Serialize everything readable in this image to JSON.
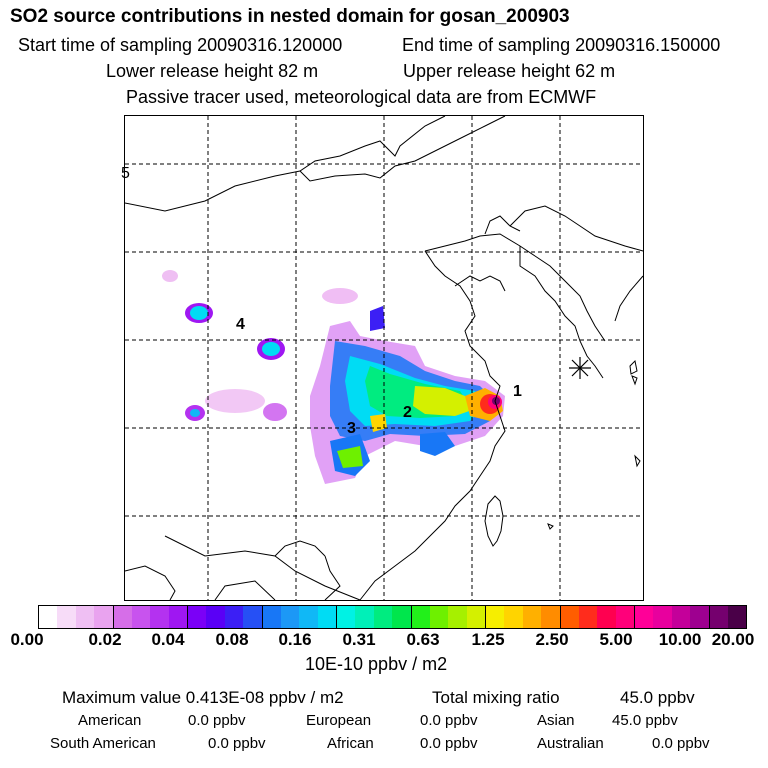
{
  "header": {
    "title": "SO2 source contributions in nested domain for gosan_200903",
    "start_time": "Start time of sampling 20090316.120000",
    "end_time": "End time of sampling 20090316.150000",
    "lower_release": "Lower release height   82 m",
    "upper_release": "Upper release height   62 m",
    "tracer_note": "Passive tracer used, meteorological data are from ECMWF"
  },
  "map": {
    "source_labels": [
      "1",
      "2",
      "3",
      "4"
    ],
    "edge_label": "5",
    "receptor_symbol": "star-icon"
  },
  "colorbar": {
    "tick_labels": [
      "0.00",
      "0.02",
      "0.04",
      "0.08",
      "0.16",
      "0.31",
      "0.63",
      "1.25",
      "2.50",
      "5.00",
      "10.00",
      "20.00"
    ],
    "colors": [
      "#ffffff",
      "#f7dcf8",
      "#efbff3",
      "#e9a3ef",
      "#d66ee8",
      "#c853ee",
      "#b432f0",
      "#9f17f2",
      "#7b00f7",
      "#5a00f6",
      "#3c1ff5",
      "#2650f5",
      "#1877f6",
      "#1c98f6",
      "#10b8f6",
      "#00dcf4",
      "#00f2e4",
      "#00f0b8",
      "#00ec80",
      "#00e64c",
      "#22f01a",
      "#6ef000",
      "#a6f000",
      "#d4f000",
      "#f6ee00",
      "#ffd400",
      "#ffb000",
      "#ff8c00",
      "#ff5d00",
      "#ff2c1c",
      "#ff0050",
      "#ff007a",
      "#ff0098",
      "#e8009e",
      "#c4009a",
      "#9e0090",
      "#75006e",
      "#4a0048"
    ],
    "units": "10E-10 ppbv / m2"
  },
  "stats": {
    "max_label": "Maximum value  0.413E-08 ppbv / m2",
    "total_label": "Total mixing ratio",
    "total_value": "45.0 ppbv",
    "regions": [
      {
        "name": "American",
        "value": "0.0 ppbv"
      },
      {
        "name": "European",
        "value": "0.0 ppbv"
      },
      {
        "name": "Asian",
        "value": "45.0 ppbv"
      },
      {
        "name": "South American",
        "value": "0.0 ppbv"
      },
      {
        "name": "African",
        "value": "0.0 ppbv"
      },
      {
        "name": "Australian",
        "value": "0.0 ppbv"
      }
    ]
  }
}
